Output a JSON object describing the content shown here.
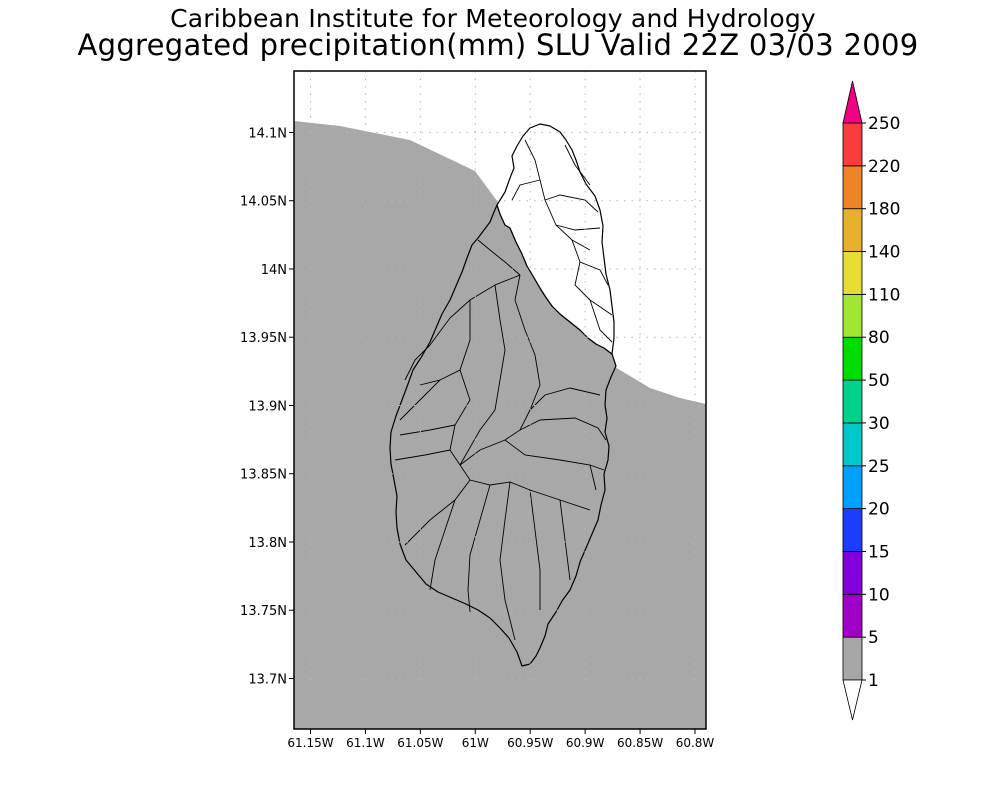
{
  "header": {
    "title": "Caribbean Institute for Meteorology and Hydrology",
    "subtitle": "Aggregated precipitation(mm) SLU Valid 22Z 03/03 2009"
  },
  "map": {
    "lat_ticks": [
      {
        "value": 14.1,
        "label": "14.1N"
      },
      {
        "value": 14.05,
        "label": "14.05N"
      },
      {
        "value": 14.0,
        "label": "14N"
      },
      {
        "value": 13.95,
        "label": "13.95N"
      },
      {
        "value": 13.9,
        "label": "13.9N"
      },
      {
        "value": 13.85,
        "label": "13.85N"
      },
      {
        "value": 13.8,
        "label": "13.8N"
      },
      {
        "value": 13.75,
        "label": "13.75N"
      },
      {
        "value": 13.7,
        "label": "13.7N"
      }
    ],
    "lon_ticks": [
      {
        "value": -61.15,
        "label": "61.15W"
      },
      {
        "value": -61.1,
        "label": "61.1W"
      },
      {
        "value": -61.05,
        "label": "61.05W"
      },
      {
        "value": -61.0,
        "label": "61W"
      },
      {
        "value": -60.95,
        "label": "60.95W"
      },
      {
        "value": -60.9,
        "label": "60.9W"
      },
      {
        "value": -60.85,
        "label": "60.85W"
      },
      {
        "value": -60.8,
        "label": "60.8W"
      }
    ],
    "lon_range": [
      -61.165,
      -60.79
    ],
    "lat_range": [
      13.663,
      14.145
    ],
    "shaded_class_color": "#a8a8a8",
    "unshaded_class_color": "#ffffff"
  },
  "legend": {
    "classes": [
      {
        "label": "1",
        "color": "#ffffff"
      },
      {
        "label": "5",
        "color": "#a6a6a6"
      },
      {
        "label": "10",
        "color": "#a000c8"
      },
      {
        "label": "15",
        "color": "#8200dc"
      },
      {
        "label": "20",
        "color": "#1e3cff"
      },
      {
        "label": "25",
        "color": "#00a0ff"
      },
      {
        "label": "30",
        "color": "#00c8c8"
      },
      {
        "label": "50",
        "color": "#00d28c"
      },
      {
        "label": "80",
        "color": "#00dc00"
      },
      {
        "label": "110",
        "color": "#a0e632"
      },
      {
        "label": "140",
        "color": "#e6dc32"
      },
      {
        "label": "180",
        "color": "#e6af2d"
      },
      {
        "label": "220",
        "color": "#f08228"
      },
      {
        "label": "250",
        "color": "#fa3c3c"
      }
    ],
    "top_arrow_color": "#f00082"
  }
}
